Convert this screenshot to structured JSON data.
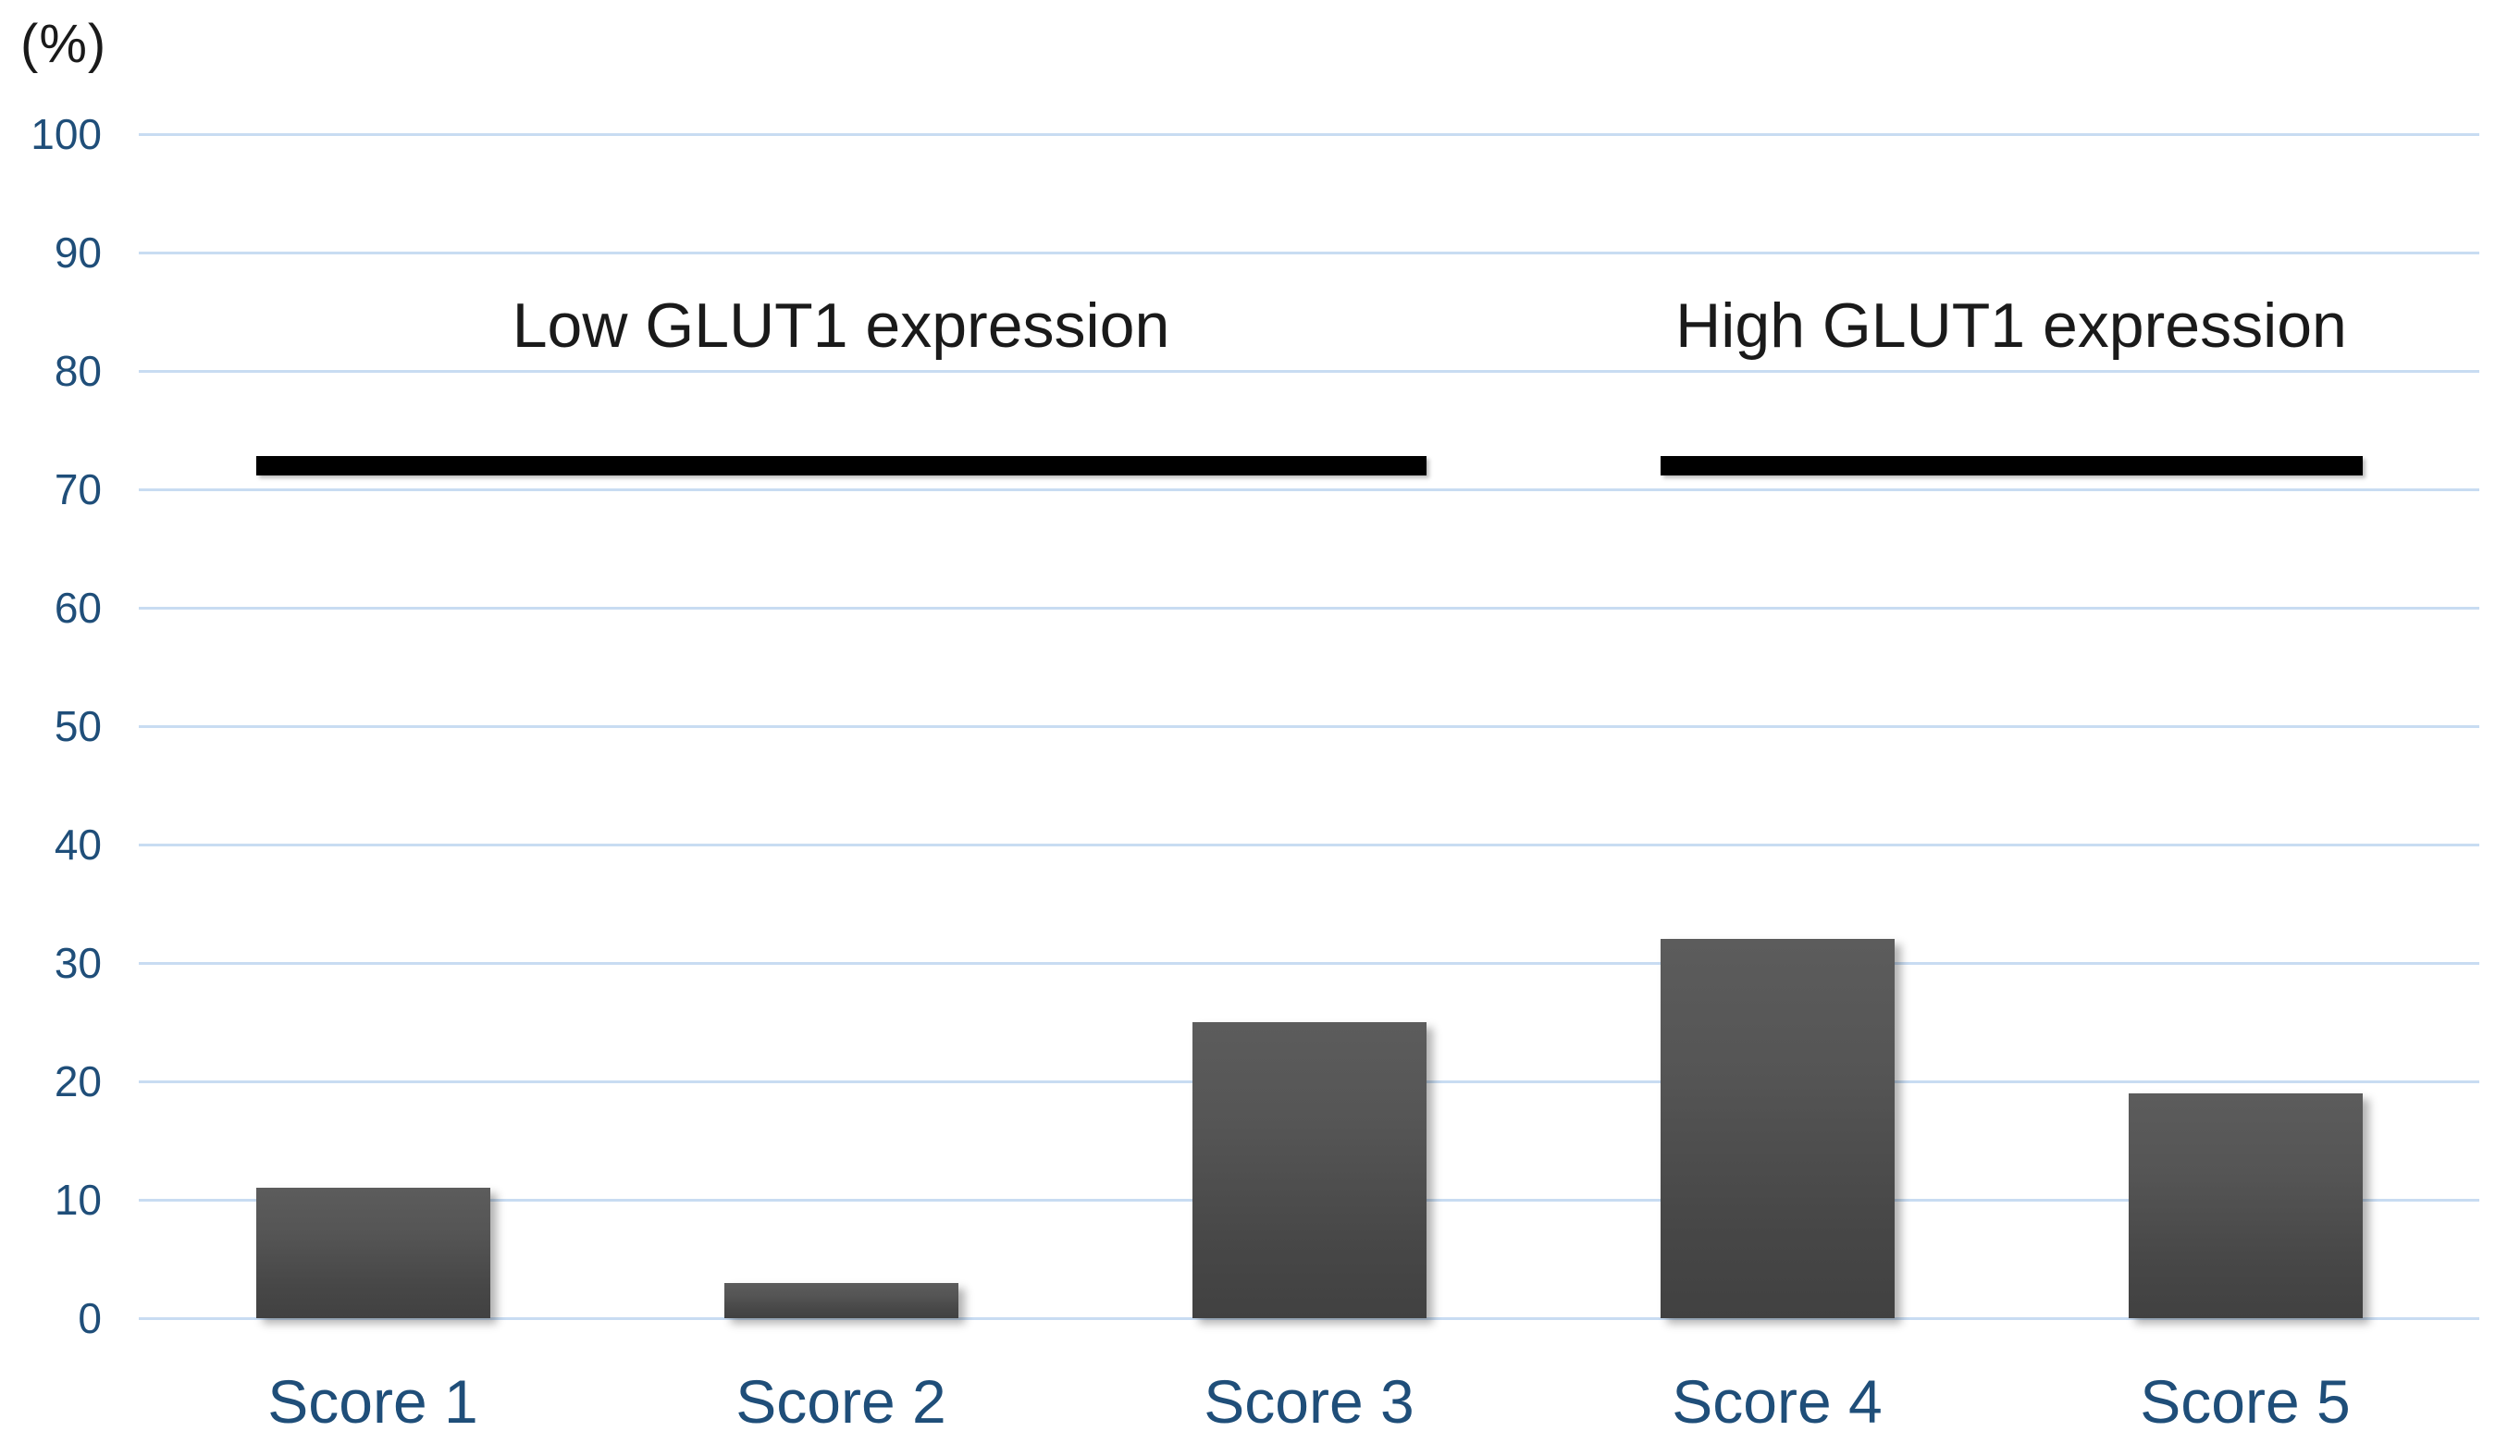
{
  "chart_data": {
    "type": "bar",
    "title": "",
    "y_unit_label": "(%)",
    "categories": [
      "Score 1",
      "Score 2",
      "Score 3",
      "Score 4",
      "Score 5"
    ],
    "values": [
      11,
      3,
      25,
      32,
      19
    ],
    "ylim": [
      0,
      100
    ],
    "yticks": [
      0,
      10,
      20,
      30,
      40,
      50,
      60,
      70,
      80,
      90,
      100
    ],
    "grid": true,
    "legend_position": "none",
    "annotations": [
      {
        "label": "Low GLUT1 expression",
        "span_categories": [
          "Score 1",
          "Score 3"
        ],
        "line_y": 72
      },
      {
        "label": "High GLUT1 expression",
        "span_categories": [
          "Score 4",
          "Score 5"
        ],
        "line_y": 72
      }
    ],
    "colors": {
      "bar_gradient_top": "#5c5c5c",
      "bar_gradient_bottom": "#414141",
      "gridline": "#c8dcf2",
      "tick_label": "#1f4e79",
      "annotation_line": "#000000",
      "annotation_text": "#1a1a1a",
      "unit_label": "#1a1a1a",
      "background": "#ffffff"
    }
  }
}
